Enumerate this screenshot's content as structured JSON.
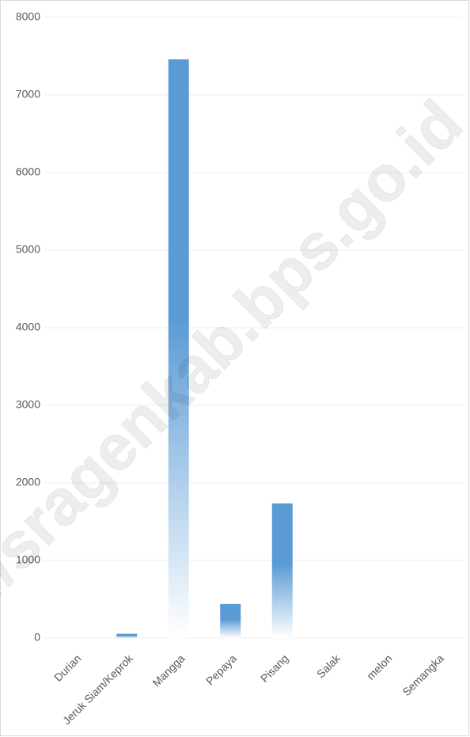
{
  "chart_data": {
    "type": "bar",
    "categories": [
      "Durian",
      "Jeruk Siam/Keprok",
      "Mangga",
      "Pepaya",
      "Pisang",
      "Salak",
      "melon",
      "Semangka"
    ],
    "values": [
      0,
      55,
      7460,
      440,
      1735,
      0,
      0,
      0
    ],
    "color": "#5b9bd5",
    "ylim": [
      0,
      8000
    ],
    "yticks": [
      0,
      1000,
      2000,
      3000,
      4000,
      5000,
      6000,
      7000,
      8000
    ],
    "grid": true,
    "watermark": "s://sragenkab.bps.go.id"
  }
}
